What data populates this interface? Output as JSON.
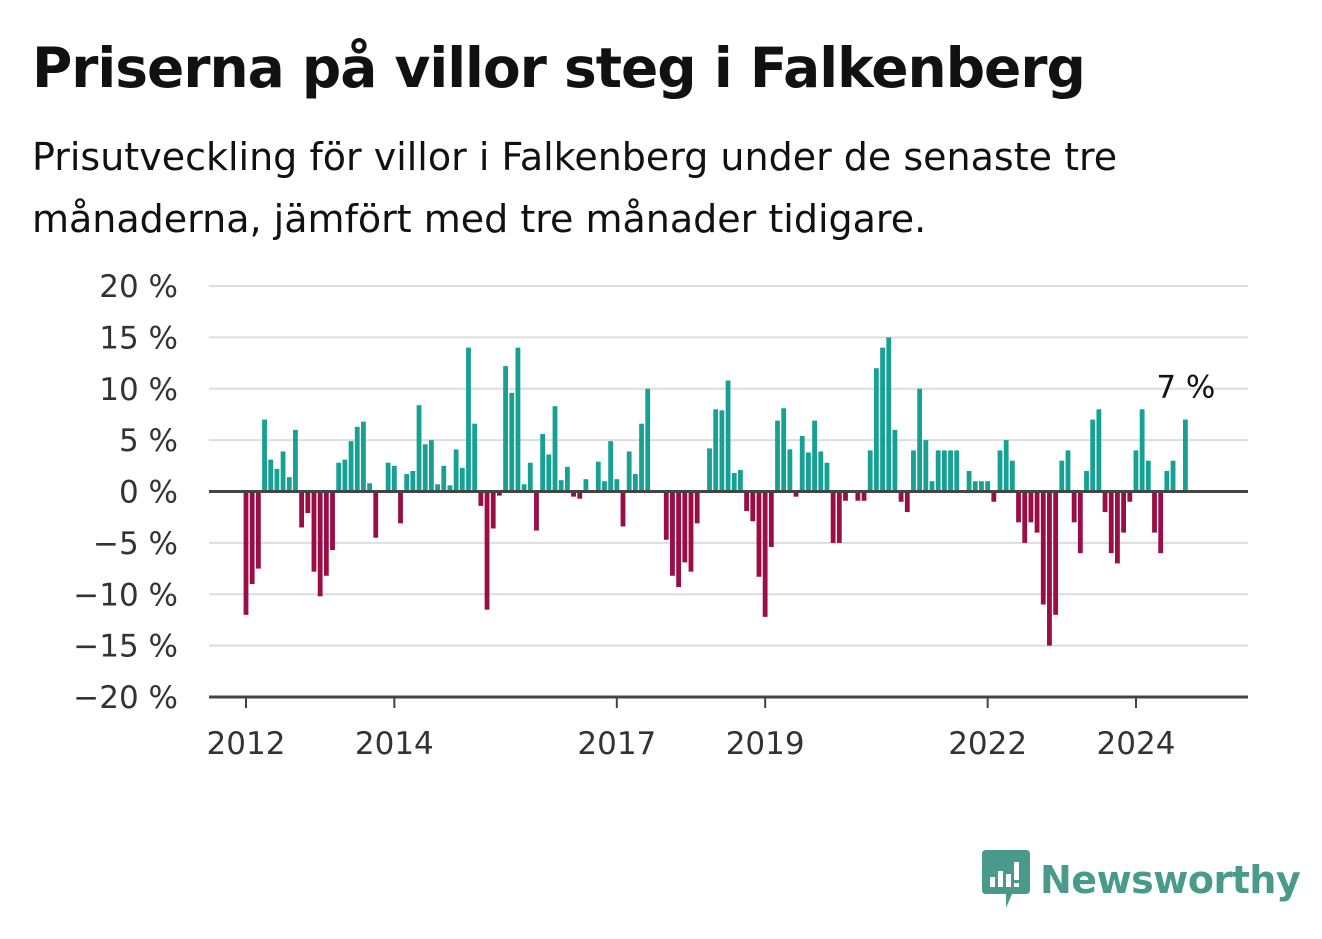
{
  "title": "Priserna på villor steg i Falkenberg",
  "subtitle": "Prisutveckling för villor i Falkenberg under de senaste tre månaderna, jämfört med tre månader tidigare.",
  "brand": {
    "name": "Newsworthy",
    "color": "#4a9a8c"
  },
  "colors": {
    "positive": "#17a194",
    "negative": "#9b0d45",
    "grid": "#dddddd",
    "axis": "#444444"
  },
  "chart_data": {
    "type": "bar",
    "grid": true,
    "ylim": [
      -20,
      20
    ],
    "yticks": [
      20,
      15,
      10,
      5,
      0,
      -5,
      -10,
      -15,
      -20
    ],
    "ytick_labels": [
      "20 %",
      "15 %",
      "10 %",
      "5 %",
      "0 %",
      "−5 %",
      "−10 %",
      "−15 %",
      "−20 %"
    ],
    "xticks": [
      {
        "label": "2012",
        "x": 2012.0
      },
      {
        "label": "2014",
        "x": 2014.0
      },
      {
        "label": "2017",
        "x": 2017.0
      },
      {
        "label": "2019",
        "x": 2019.0
      },
      {
        "label": "2022",
        "x": 2022.0
      },
      {
        "label": "2024",
        "x": 2024.0
      }
    ],
    "x_start": 2011.5,
    "x_step": 0.08333,
    "values": [
      0,
      0,
      0,
      0,
      0,
      0,
      -12,
      -9,
      -7.5,
      7,
      3.1,
      2.2,
      3.9,
      1.4,
      6,
      -3.5,
      -2.1,
      -7.8,
      -10.2,
      -8.2,
      -5.7,
      2.8,
      3.1,
      4.9,
      6.3,
      6.8,
      0.8,
      -4.5,
      0,
      2.8,
      2.5,
      -3.1,
      1.7,
      2,
      8.4,
      4.6,
      5,
      0.7,
      2.5,
      0.6,
      4.1,
      2.3,
      14,
      6.6,
      -1.4,
      -11.5,
      -3.6,
      -0.4,
      12.2,
      9.6,
      14,
      0.7,
      2.8,
      -3.8,
      5.6,
      3.6,
      8.3,
      1.1,
      2.4,
      -0.5,
      -0.7,
      1.2,
      0,
      2.9,
      1,
      4.9,
      1.2,
      -3.4,
      3.9,
      1.7,
      6.6,
      10,
      0,
      0,
      -4.7,
      -8.2,
      -9.3,
      -6.9,
      -7.8,
      -3.1,
      0,
      4.2,
      8,
      7.9,
      10.8,
      1.8,
      2.1,
      -1.9,
      -2.9,
      -8.3,
      -12.2,
      -5.4,
      6.9,
      8.1,
      4.1,
      -0.5,
      5.4,
      3.8,
      6.9,
      3.9,
      2.8,
      -5,
      -5,
      -0.9,
      0,
      -0.9,
      -0.9,
      4,
      12,
      14,
      15,
      6,
      -1,
      -2,
      4,
      10,
      5,
      1,
      4,
      4,
      4,
      4,
      0,
      2,
      1,
      1,
      1,
      -1,
      4,
      5,
      3,
      -3,
      -5,
      -3,
      -4,
      -11,
      -15,
      -12,
      3,
      4,
      -3,
      -6,
      2,
      7,
      8,
      -2,
      -6,
      -7,
      -4,
      -1,
      4,
      8,
      3,
      -4,
      -6,
      2,
      3,
      0,
      7
    ],
    "annotation": "7 %"
  }
}
